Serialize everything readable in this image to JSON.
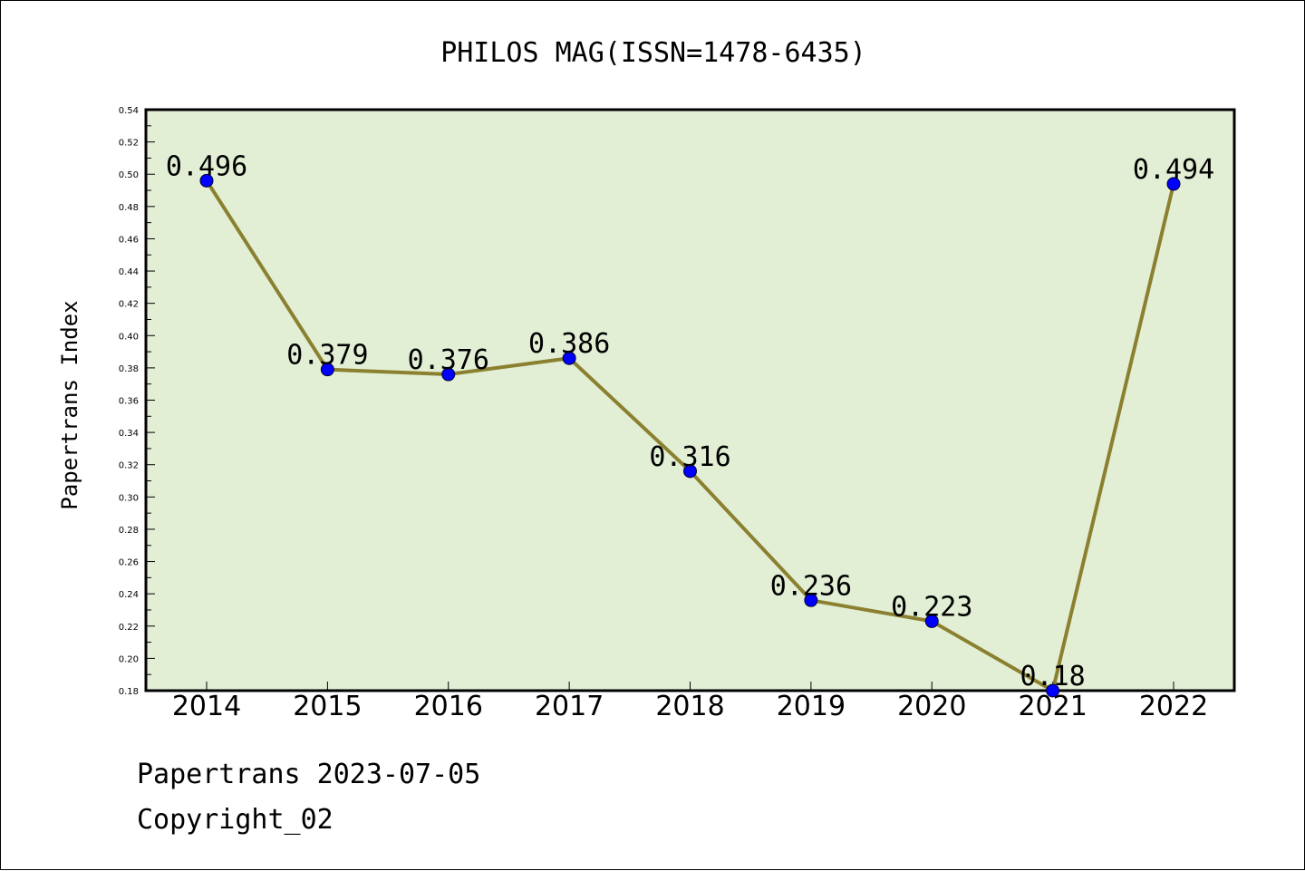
{
  "footer": {
    "line1": "Papertrans 2023-07-05",
    "line2": "Copyright_02"
  },
  "chart_data": {
    "type": "line",
    "title": "PHILOS MAG(ISSN=1478-6435)",
    "xlabel": "",
    "ylabel": "Papertrans Index",
    "categories": [
      "2014",
      "2015",
      "2016",
      "2017",
      "2018",
      "2019",
      "2020",
      "2021",
      "2022"
    ],
    "series": [
      {
        "values": [
          0.496,
          0.379,
          0.376,
          0.386,
          0.316,
          0.236,
          0.223,
          0.18,
          0.494
        ],
        "labels": [
          "0.496",
          "0.379",
          "0.376",
          "0.386",
          "0.316",
          "0.236",
          "0.223",
          "0.18",
          "0.494"
        ]
      }
    ],
    "ylim": [
      0.18,
      0.54
    ],
    "yticks": [
      "0.18",
      "0.20",
      "0.22",
      "0.24",
      "0.26",
      "0.28",
      "0.30",
      "0.32",
      "0.34",
      "0.36",
      "0.38",
      "0.40",
      "0.42",
      "0.44",
      "0.46",
      "0.48",
      "0.50",
      "0.52",
      "0.54"
    ],
    "grid": false,
    "legend": "none",
    "colors": {
      "plot_background": "#e2efd5",
      "line": "#8b8030",
      "marker": "#0000ff"
    }
  }
}
